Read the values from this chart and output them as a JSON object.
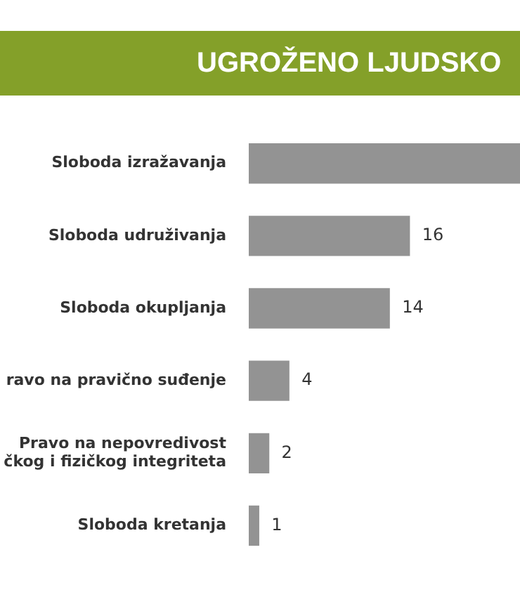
{
  "chart_data": {
    "type": "bar",
    "orientation": "horizontal",
    "title": "UGROŽENO LJUDSKO",
    "categories": [
      "Sloboda izražavanja",
      "Sloboda udruživanja",
      "Sloboda okupljanja",
      "ravo na pravično suđenje",
      "Pravo na nepovredivost\nčkog i fizičkog integriteta",
      "Sloboda kretanja"
    ],
    "values": [
      27,
      16,
      14,
      4,
      2,
      1
    ],
    "value_labels": [
      null,
      "16",
      "14",
      "4",
      "2",
      "1"
    ],
    "color": "#939393",
    "xlim": [
      0,
      27
    ],
    "tick_labels": "y",
    "legend": false
  }
}
